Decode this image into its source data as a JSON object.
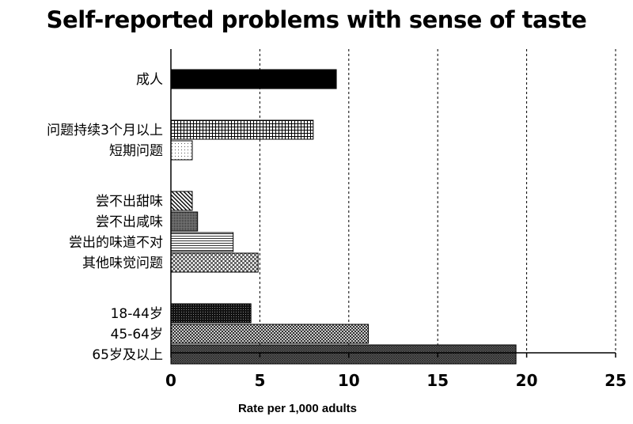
{
  "chart_data": {
    "type": "bar",
    "orientation": "horizontal",
    "title": "Self-reported problems with sense of taste",
    "xlabel": "Rate per 1,000 adults",
    "ylabel": "",
    "xlim": [
      0,
      25
    ],
    "x_ticks": [
      "0",
      "5",
      "10",
      "15",
      "20",
      "25"
    ],
    "grid": "vertical-dashed",
    "legend": "none",
    "bars": [
      {
        "label": "成人",
        "value": 9.3,
        "pattern": "solid",
        "group": 0
      },
      {
        "label": "问题持续3个月以上",
        "value": 8.0,
        "pattern": "grid",
        "group": 1
      },
      {
        "label": "短期问题",
        "value": 1.2,
        "pattern": "dots-light",
        "group": 1
      },
      {
        "label": "尝不出甜味",
        "value": 1.2,
        "pattern": "diagonal",
        "group": 2
      },
      {
        "label": "尝不出咸味",
        "value": 1.5,
        "pattern": "fine-dark",
        "group": 2
      },
      {
        "label": "尝出的味道不对",
        "value": 3.5,
        "pattern": "horizontal-lines",
        "group": 2
      },
      {
        "label": "其他味觉问题",
        "value": 4.9,
        "pattern": "crosshatch",
        "group": 2
      },
      {
        "label": "18-44岁",
        "value": 4.5,
        "pattern": "dense-dark",
        "group": 3
      },
      {
        "label": "45-64岁",
        "value": 11.1,
        "pattern": "checker",
        "group": 3
      },
      {
        "label": "65岁及以上",
        "value": 19.4,
        "pattern": "fine-crosshatch",
        "group": 3
      }
    ]
  }
}
